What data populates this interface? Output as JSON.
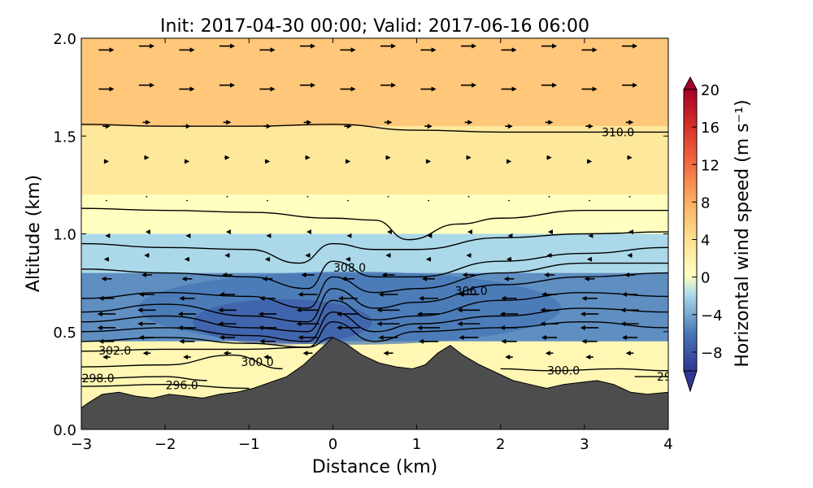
{
  "chart_data": {
    "type": "heatmap",
    "title": "Init: 2017-04-30 00:00; Valid: 2017-06-16 06:00",
    "xlabel": "Distance (km)",
    "ylabel": "Altitude (km)",
    "xlim": [
      -3,
      4
    ],
    "ylim": [
      0.0,
      2.0
    ],
    "xticks": [
      -3,
      -2,
      -1,
      0,
      1,
      2,
      3,
      4
    ],
    "yticks": [
      0.0,
      0.5,
      1.0,
      1.5,
      2.0
    ],
    "xtick_labels": [
      "−3",
      "−2",
      "−1",
      "0",
      "1",
      "2",
      "3",
      "4"
    ],
    "ytick_labels": [
      "0.0",
      "0.5",
      "1.0",
      "1.5",
      "2.0"
    ],
    "colorbar": {
      "label": "Horizontal wind speed (m s⁻¹)",
      "range": [
        -10,
        20
      ],
      "ticks": [
        20,
        16,
        12,
        8,
        4,
        0,
        -4,
        -8
      ],
      "tick_labels": [
        "20",
        "16",
        "12",
        "8",
        "4",
        "0",
        "−4",
        "−8"
      ],
      "colormap": "RdYlBu_r",
      "extend": "both"
    },
    "terrain": {
      "color": "#4d4d4d",
      "x": [
        -3.0,
        -2.9,
        -2.75,
        -2.55,
        -2.35,
        -2.15,
        -1.95,
        -1.75,
        -1.55,
        -1.35,
        -1.15,
        -0.95,
        -0.75,
        -0.55,
        -0.35,
        -0.15,
        0.0,
        0.15,
        0.35,
        0.55,
        0.75,
        0.95,
        1.1,
        1.25,
        1.4,
        1.55,
        1.75,
        1.95,
        2.15,
        2.35,
        2.55,
        2.75,
        2.95,
        3.15,
        3.35,
        3.55,
        3.75,
        4.0
      ],
      "y": [
        0.11,
        0.14,
        0.18,
        0.19,
        0.17,
        0.16,
        0.18,
        0.17,
        0.16,
        0.18,
        0.19,
        0.21,
        0.24,
        0.27,
        0.33,
        0.41,
        0.47,
        0.44,
        0.38,
        0.34,
        0.32,
        0.31,
        0.33,
        0.39,
        0.43,
        0.38,
        0.33,
        0.29,
        0.25,
        0.23,
        0.21,
        0.23,
        0.24,
        0.25,
        0.23,
        0.19,
        0.18,
        0.19
      ]
    },
    "wind_speed_bands": [
      {
        "ymin": 1.55,
        "ymax": 2.0,
        "value": 6
      },
      {
        "ymin": 1.2,
        "ymax": 1.55,
        "value": 3
      },
      {
        "ymin": 1.0,
        "ymax": 1.2,
        "value": 0
      },
      {
        "ymin": 0.8,
        "ymax": 1.0,
        "value": -2
      },
      {
        "ymin": 0.45,
        "ymax": 0.8,
        "value": -5
      },
      {
        "ymin": 0.0,
        "ymax": 0.45,
        "value": 1
      }
    ],
    "isentropes": [
      {
        "level": 310.0,
        "label": "310.0",
        "x": [
          -3,
          -2,
          -1,
          0,
          1,
          2,
          3,
          4
        ],
        "y": [
          1.56,
          1.55,
          1.55,
          1.56,
          1.53,
          1.52,
          1.52,
          1.52
        ],
        "label_x": 3.4
      },
      {
        "level": 309.5,
        "x": [
          -3,
          -2,
          -1,
          0,
          0.5,
          0.9,
          1.5,
          2,
          3,
          4
        ],
        "y": [
          1.13,
          1.12,
          1.11,
          1.08,
          1.07,
          0.97,
          1.05,
          1.08,
          1.12,
          1.12
        ]
      },
      {
        "level": 309.0,
        "x": [
          -3,
          -2,
          -1,
          -0.4,
          0,
          0.5,
          1,
          2,
          3,
          4
        ],
        "y": [
          0.95,
          0.93,
          0.92,
          0.85,
          0.95,
          0.92,
          0.92,
          0.98,
          1.0,
          1.01
        ]
      },
      {
        "level": 308.0,
        "label": "308.0",
        "x": [
          -3,
          -2,
          -1,
          -0.3,
          0,
          0.5,
          1,
          2,
          3,
          4
        ],
        "y": [
          0.82,
          0.8,
          0.78,
          0.72,
          0.86,
          0.78,
          0.78,
          0.86,
          0.9,
          0.93
        ],
        "label_x": 0.2
      },
      {
        "level": 307.0,
        "x": [
          -3,
          -2,
          -1,
          -0.3,
          0,
          0.5,
          1,
          2,
          3,
          4
        ],
        "y": [
          0.67,
          0.7,
          0.68,
          0.62,
          0.78,
          0.7,
          0.72,
          0.8,
          0.85,
          0.85
        ]
      },
      {
        "level": 306.0,
        "label": "306.0",
        "x": [
          -3,
          -2,
          -1,
          -0.3,
          0,
          0.5,
          1,
          2,
          3,
          4
        ],
        "y": [
          0.6,
          0.64,
          0.58,
          0.55,
          0.72,
          0.62,
          0.65,
          0.74,
          0.78,
          0.8
        ],
        "label_x": 1.65
      },
      {
        "level": 305.5,
        "x": [
          -3,
          -2,
          -1,
          -0.3,
          0,
          0.5,
          1,
          2,
          3,
          4
        ],
        "y": [
          0.55,
          0.58,
          0.52,
          0.5,
          0.66,
          0.56,
          0.58,
          0.66,
          0.7,
          0.68
        ]
      },
      {
        "level": 305.0,
        "x": [
          -3,
          -2,
          -1,
          -0.3,
          0,
          0.5,
          1,
          2,
          3,
          4
        ],
        "y": [
          0.5,
          0.52,
          0.48,
          0.45,
          0.6,
          0.5,
          0.54,
          0.58,
          0.62,
          0.6
        ]
      },
      {
        "level": 304.0,
        "x": [
          -3,
          -2,
          -1,
          -0.3,
          0,
          0.5,
          1,
          2,
          3,
          4
        ],
        "y": [
          0.45,
          0.47,
          0.44,
          0.42,
          0.55,
          0.45,
          0.5,
          0.52,
          0.55,
          0.52
        ]
      },
      {
        "level": 302.0,
        "label": "302.0",
        "x": [
          -3,
          -2,
          -1,
          -0.3,
          0.0
        ],
        "y": [
          0.4,
          0.41,
          0.41,
          0.42,
          0.47
        ],
        "label_x": -2.6
      },
      {
        "level": 300.0,
        "label": "300.0",
        "x": [
          -3,
          -2,
          -1.2,
          -0.6
        ],
        "y": [
          0.32,
          0.33,
          0.38,
          0.31
        ],
        "label_x": -0.9
      },
      {
        "level": 298.0,
        "label": "298.0",
        "x": [
          -3,
          -2,
          -1.5
        ],
        "y": [
          0.26,
          0.27,
          0.25
        ],
        "label_x": -2.8
      },
      {
        "level": 296.0,
        "label": "296.0",
        "x": [
          -3,
          -2,
          -1.0
        ],
        "y": [
          0.22,
          0.23,
          0.21
        ],
        "label_x": -1.8
      },
      {
        "level": 300.0,
        "label": "300.0",
        "x": [
          2.0,
          2.6,
          3.4,
          4.0
        ],
        "y": [
          0.31,
          0.3,
          0.31,
          0.3
        ],
        "label_x": 2.75
      },
      {
        "level": 298.0,
        "label": "29",
        "x": [
          3.6,
          4.0
        ],
        "y": [
          0.27,
          0.27
        ],
        "label_x": 3.95
      }
    ],
    "wind_vectors": {
      "description_rows": [
        {
          "y": 1.95,
          "u": 6
        },
        {
          "y": 1.75,
          "u": 6
        },
        {
          "y": 1.56,
          "u": 3
        },
        {
          "y": 1.38,
          "u": 2
        },
        {
          "y": 1.18,
          "u": 0
        },
        {
          "y": 1.0,
          "u": -1
        },
        {
          "y": 0.88,
          "u": -2
        },
        {
          "y": 0.78,
          "u": -4
        },
        {
          "y": 0.68,
          "u": -6
        },
        {
          "y": 0.6,
          "u": -7
        },
        {
          "y": 0.53,
          "u": -7
        },
        {
          "y": 0.46,
          "u": -6
        },
        {
          "y": 0.38,
          "u": -3
        }
      ]
    }
  }
}
